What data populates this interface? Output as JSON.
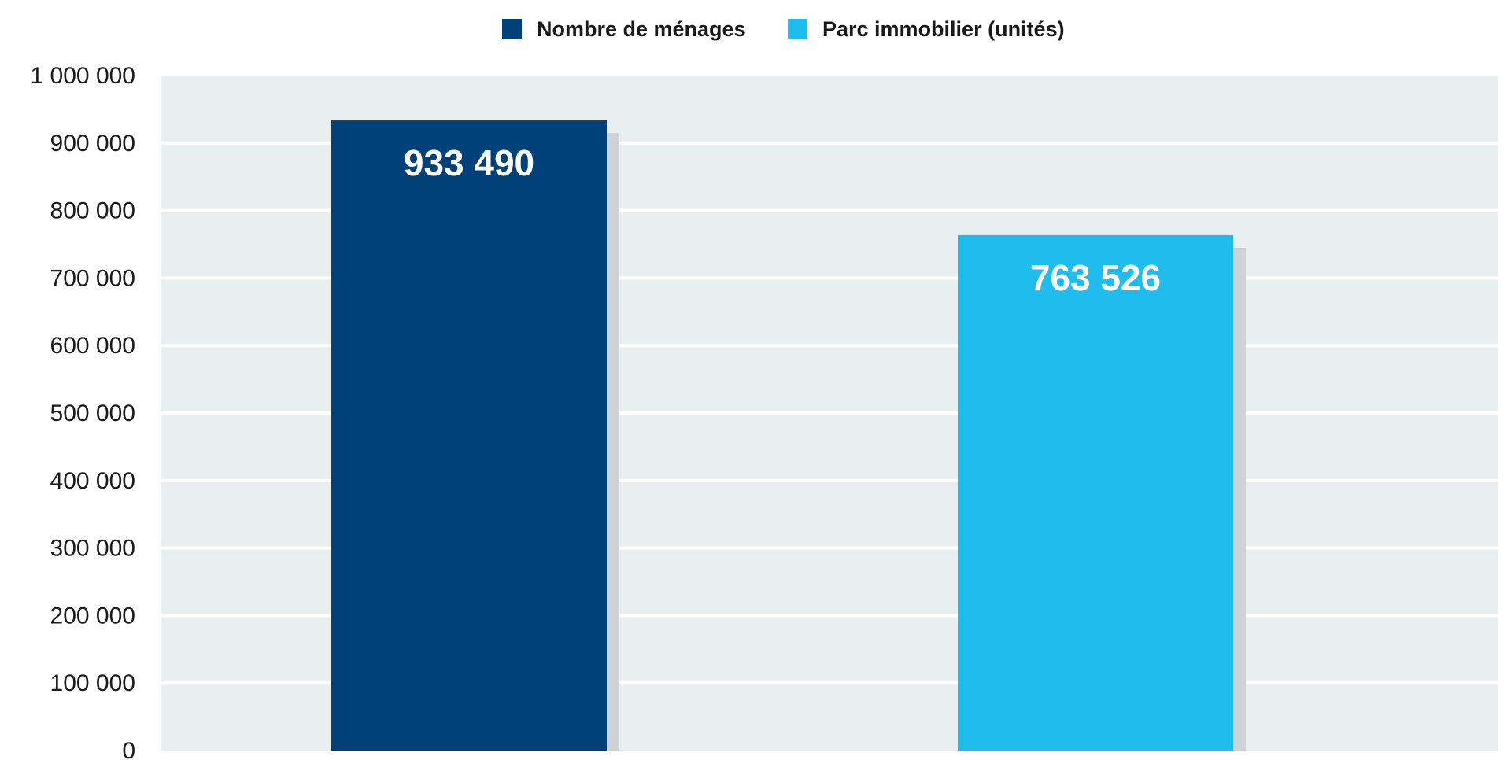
{
  "chart_data": {
    "type": "bar",
    "title": "",
    "xlabel": "",
    "ylabel": "",
    "categories": [
      "Nombre de ménages",
      "Parc immobilier (unités)"
    ],
    "values": [
      933490,
      763526
    ],
    "data_labels": [
      "933 490",
      "763 526"
    ],
    "colors": [
      "#004179",
      "#1fbcee"
    ],
    "shadow_color": "#cdd2d6",
    "plot_background": "#e9eef1",
    "gridline_color": "#ffffff",
    "ylim": [
      0,
      1000000
    ],
    "yticks": [
      0,
      100000,
      200000,
      300000,
      400000,
      500000,
      600000,
      700000,
      800000,
      900000,
      1000000
    ],
    "ytick_labels": [
      "0",
      "100 000",
      "200 000",
      "300 000",
      "400 000",
      "500 000",
      "600 000",
      "700 000",
      "800 000",
      "900 000",
      "1 000 000"
    ],
    "grid": true,
    "legend": {
      "position": "top-center",
      "entries": [
        {
          "label": "Nombre de ménages",
          "color": "#004179"
        },
        {
          "label": "Parc immobilier (unités)",
          "color": "#1fbcee"
        }
      ]
    }
  }
}
